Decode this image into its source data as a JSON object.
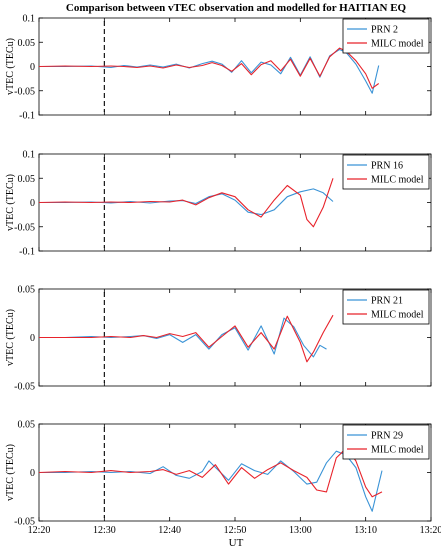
{
  "title": "Comparison between vTEC observation and modelled for HAITIAN EQ",
  "xlabel": "UT",
  "x_tick_labels": [
    "12:20",
    "12:30",
    "12:40",
    "12:50",
    "13:00",
    "13:10",
    "13:20"
  ],
  "colors": {
    "observation": "#3a93d6",
    "model": "#e8232b",
    "event_line": "#000000"
  },
  "chart_data": [
    {
      "type": "line",
      "ylabel": "vTEC (TECu)",
      "xlim": [
        "12:20",
        "13:20"
      ],
      "ylim": [
        -0.1,
        0.1
      ],
      "y_ticks": [
        -0.1,
        -0.05,
        0,
        0.05,
        0.1
      ],
      "y_tick_labels": [
        "-0.1",
        "-0.05",
        "0",
        "0.05",
        "0.1"
      ],
      "event_line_x": "12:30",
      "legend_position": "top-right",
      "series": [
        {
          "name": "PRN 2",
          "color": "#3a93d6",
          "x": [
            "12:20",
            "12:24",
            "12:28",
            "12:31",
            "12:33",
            "12:35",
            "12:37",
            "12:39",
            "12:41",
            "12:43",
            "12:45",
            "12:46.5",
            "12:48",
            "12:49.5",
            "12:51",
            "12:52.5",
            "12:54",
            "12:55.5",
            "12:57",
            "12:58.5",
            "13:00",
            "13:01.5",
            "13:03",
            "13:04.5",
            "13:06",
            "13:07",
            "13:08.5",
            "13:10",
            "13:11",
            "13:12"
          ],
          "values": [
            0,
            0,
            0.001,
            -0.002,
            0.002,
            -0.001,
            0.003,
            -0.001,
            0.005,
            -0.003,
            0.006,
            0.011,
            0.005,
            -0.012,
            0.012,
            -0.013,
            0.009,
            0.003,
            -0.015,
            0.019,
            -0.018,
            0.02,
            -0.022,
            0.022,
            0.035,
            0.029,
            0.005,
            -0.03,
            -0.055,
            0.002
          ]
        },
        {
          "name": "MILC model",
          "color": "#e8232b",
          "x": [
            "12:20",
            "12:24",
            "12:28",
            "12:31",
            "12:33",
            "12:35",
            "12:37",
            "12:39",
            "12:41",
            "12:43",
            "12:45",
            "12:46.5",
            "12:48",
            "12:49.5",
            "12:51",
            "12:52.5",
            "12:54",
            "12:55.5",
            "12:57",
            "12:58.5",
            "13:00",
            "13:01.5",
            "13:03",
            "13:04.5",
            "13:06",
            "13:07",
            "13:08.5",
            "13:10",
            "13:11",
            "13:12"
          ],
          "values": [
            0,
            0.001,
            0,
            0.001,
            0,
            -0.002,
            0.001,
            -0.003,
            0.003,
            -0.002,
            0.002,
            0.008,
            0.002,
            -0.01,
            0.006,
            -0.017,
            0.004,
            0.012,
            -0.009,
            0.015,
            -0.02,
            0.017,
            -0.02,
            0.02,
            0.038,
            0.032,
            0.012,
            -0.015,
            -0.045,
            -0.035
          ]
        }
      ]
    },
    {
      "type": "line",
      "ylabel": "vTEC (TECu)",
      "xlim": [
        "12:20",
        "13:20"
      ],
      "ylim": [
        -0.1,
        0.1
      ],
      "y_ticks": [
        -0.1,
        -0.05,
        0,
        0.05,
        0.1
      ],
      "y_tick_labels": [
        "-0.1",
        "-0.05",
        "0",
        "0.05",
        "0.1"
      ],
      "event_line_x": "12:30",
      "legend_position": "top-right",
      "series": [
        {
          "name": "PRN 16",
          "color": "#3a93d6",
          "x": [
            "12:20",
            "12:24",
            "12:28",
            "12:31",
            "12:34",
            "12:37",
            "12:40",
            "12:42",
            "12:44",
            "12:46",
            "12:48",
            "12:50",
            "12:52",
            "12:54",
            "12:56",
            "12:58",
            "13:00",
            "13:02",
            "13:03.5",
            "13:05"
          ],
          "values": [
            0,
            0,
            0.001,
            -0.001,
            0.002,
            -0.001,
            0.003,
            0.004,
            -0.002,
            0.012,
            0.018,
            0.005,
            -0.02,
            -0.025,
            -0.015,
            0.012,
            0.022,
            0.028,
            0.02,
            0.002
          ]
        },
        {
          "name": "MILC model",
          "color": "#e8232b",
          "x": [
            "12:20",
            "12:24",
            "12:28",
            "12:31",
            "12:34",
            "12:37",
            "12:40",
            "12:42",
            "12:44",
            "12:46",
            "12:48",
            "12:50",
            "12:52",
            "12:54",
            "12:56",
            "12:58",
            "13:00",
            "13:01",
            "13:02",
            "13:03.5",
            "13:05"
          ],
          "values": [
            0,
            0.001,
            0,
            0.001,
            0,
            0.002,
            0.001,
            0.005,
            -0.005,
            0.01,
            0.02,
            0.012,
            -0.015,
            -0.03,
            0.005,
            0.035,
            0.015,
            -0.035,
            -0.05,
            -0.01,
            0.05
          ]
        }
      ]
    },
    {
      "type": "line",
      "ylabel": "vTEC (TECu)",
      "xlim": [
        "12:20",
        "13:20"
      ],
      "ylim": [
        -0.05,
        0.05
      ],
      "y_ticks": [
        -0.05,
        0,
        0.05
      ],
      "y_tick_labels": [
        "-0.05",
        "0",
        "0.05"
      ],
      "event_line_x": "12:30",
      "legend_position": "top-right",
      "series": [
        {
          "name": "PRN 21",
          "color": "#3a93d6",
          "x": [
            "12:20",
            "12:24",
            "12:28",
            "12:31",
            "12:34",
            "12:36",
            "12:38",
            "12:40",
            "12:42",
            "12:44",
            "12:46",
            "12:48",
            "12:50",
            "12:52",
            "12:54",
            "12:56",
            "12:57.5",
            "12:59",
            "13:00.5",
            "13:02",
            "13:03",
            "13:04"
          ],
          "values": [
            0,
            0,
            0.001,
            0,
            0.001,
            0.002,
            -0.001,
            0.003,
            -0.005,
            0.003,
            -0.012,
            0.003,
            0.01,
            -0.013,
            0.012,
            -0.017,
            0.02,
            0.011,
            -0.008,
            -0.02,
            -0.008,
            -0.012
          ]
        },
        {
          "name": "MILC model",
          "color": "#e8232b",
          "x": [
            "12:20",
            "12:24",
            "12:28",
            "12:31",
            "12:34",
            "12:36",
            "12:38",
            "12:40",
            "12:42",
            "12:44",
            "12:46",
            "12:48",
            "12:50",
            "12:52",
            "12:54",
            "12:56",
            "12:58",
            "13:00",
            "13:01",
            "13:02",
            "13:03.5",
            "13:05"
          ],
          "values": [
            0,
            0,
            0,
            0.001,
            0,
            0.002,
            0,
            0.004,
            0.001,
            0.005,
            -0.01,
            0.001,
            0.012,
            -0.01,
            0.005,
            -0.012,
            0.022,
            -0.005,
            -0.025,
            -0.015,
            0.005,
            0.023
          ]
        }
      ]
    },
    {
      "type": "line",
      "ylabel": "vTEC (TECu)",
      "xlabel": "UT",
      "xlim": [
        "12:20",
        "13:20"
      ],
      "ylim": [
        -0.05,
        0.05
      ],
      "y_ticks": [
        -0.05,
        0,
        0.05
      ],
      "y_tick_labels": [
        "-0.05",
        "0",
        "0.05"
      ],
      "event_line_x": "12:30",
      "legend_position": "top-right",
      "series": [
        {
          "name": "PRN 29",
          "color": "#3a93d6",
          "x": [
            "12:20",
            "12:24",
            "12:28",
            "12:31",
            "12:34",
            "12:37",
            "12:39",
            "12:41",
            "12:43",
            "12:45",
            "12:46",
            "12:47.5",
            "12:49",
            "12:51",
            "12:53",
            "12:55",
            "12:57",
            "12:59",
            "13:01",
            "13:02.5",
            "13:04",
            "13:05.5",
            "13:07",
            "13:08.5",
            "13:10",
            "13:11",
            "13:12.5"
          ],
          "values": [
            0,
            0,
            0.001,
            0,
            0.001,
            -0.001,
            0.006,
            -0.003,
            -0.006,
            0.001,
            0.012,
            0.002,
            -0.008,
            0.009,
            0.002,
            -0.002,
            0.012,
            0.001,
            -0.012,
            -0.01,
            0.01,
            0.022,
            0.018,
            0.005,
            -0.025,
            -0.04,
            0.002
          ]
        },
        {
          "name": "MILC model",
          "color": "#e8232b",
          "x": [
            "12:20",
            "12:24",
            "12:28",
            "12:31",
            "12:34",
            "12:37",
            "12:39",
            "12:41",
            "12:43",
            "12:45",
            "12:47",
            "12:49",
            "12:51",
            "12:53",
            "12:55",
            "12:57",
            "12:59",
            "13:01",
            "13:02.5",
            "13:04",
            "13:05.5",
            "13:07",
            "13:08.5",
            "13:10",
            "13:11",
            "13:12.5"
          ],
          "values": [
            0,
            0.001,
            0,
            0.002,
            0,
            0.001,
            0.003,
            -0.002,
            0.002,
            -0.005,
            0.008,
            -0.012,
            0.005,
            -0.006,
            0.003,
            0.01,
            0.002,
            -0.005,
            -0.018,
            -0.02,
            0.015,
            0.025,
            0.012,
            -0.015,
            -0.025,
            -0.02
          ]
        }
      ]
    }
  ]
}
